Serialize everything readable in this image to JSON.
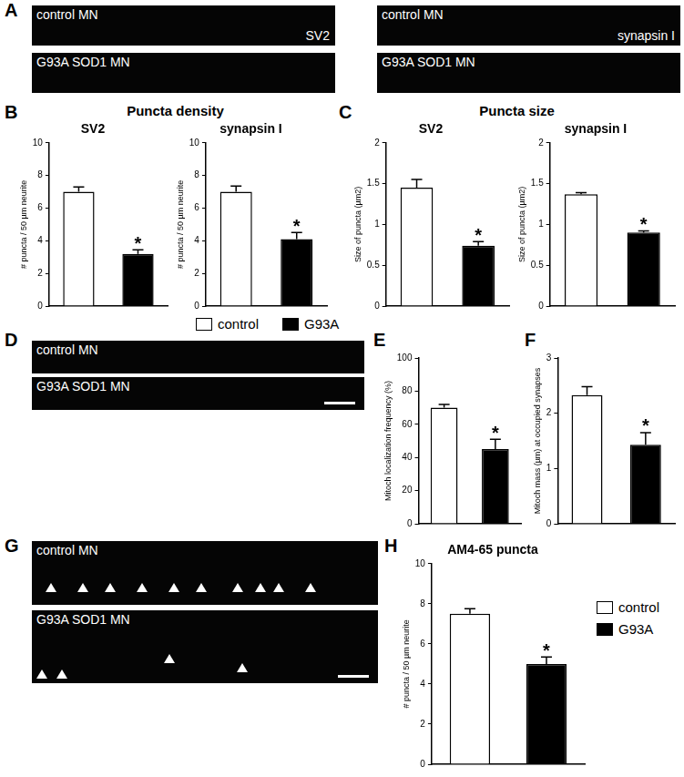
{
  "chart_data": [
    {
      "type": "bar",
      "panel": "B",
      "title": "SV2",
      "ylabel": "# puncta / 50 µm neurite",
      "categories": [
        "control",
        "G93A"
      ],
      "values": [
        7.0,
        3.2
      ],
      "errors": [
        0.3,
        0.25
      ],
      "colors": [
        "#ffffff",
        "#000000"
      ],
      "ylim": [
        0,
        10
      ],
      "yticks": [
        0,
        2,
        4,
        6,
        8,
        10
      ],
      "grid": false,
      "tick_labels": "y",
      "annotations": [
        {
          "text": "*",
          "category": "G93A"
        }
      ]
    },
    {
      "type": "bar",
      "panel": "B",
      "title": "synapsin I",
      "ylabel": "# puncta / 50 µm neurite",
      "categories": [
        "control",
        "G93A"
      ],
      "values": [
        7.0,
        4.1
      ],
      "errors": [
        0.35,
        0.4
      ],
      "colors": [
        "#ffffff",
        "#000000"
      ],
      "ylim": [
        0,
        10
      ],
      "yticks": [
        0,
        2,
        4,
        6,
        8,
        10
      ],
      "grid": false,
      "tick_labels": "y",
      "annotations": [
        {
          "text": "*",
          "category": "G93A"
        }
      ]
    },
    {
      "type": "bar",
      "panel": "C",
      "title": "SV2",
      "ylabel": "Size of puncta (µm2)",
      "categories": [
        "control",
        "G93A"
      ],
      "values": [
        1.45,
        0.74
      ],
      "errors": [
        0.1,
        0.05
      ],
      "colors": [
        "#ffffff",
        "#000000"
      ],
      "ylim": [
        0,
        2
      ],
      "yticks": [
        0,
        0.5,
        1,
        1.5,
        2
      ],
      "grid": false,
      "tick_labels": "y",
      "annotations": [
        {
          "text": "*",
          "category": "G93A"
        }
      ]
    },
    {
      "type": "bar",
      "panel": "C",
      "title": "synapsin I",
      "ylabel": "Size of puncta (µm2)",
      "categories": [
        "control",
        "G93A"
      ],
      "values": [
        1.37,
        0.9
      ],
      "errors": [
        0.02,
        0.02
      ],
      "colors": [
        "#ffffff",
        "#000000"
      ],
      "ylim": [
        0,
        2
      ],
      "yticks": [
        0,
        0.5,
        1,
        1.5,
        2
      ],
      "grid": false,
      "tick_labels": "y",
      "annotations": [
        {
          "text": "*",
          "category": "G93A"
        }
      ]
    },
    {
      "type": "bar",
      "panel": "E",
      "ylabel": "Mitoch localization frequency (%)",
      "categories": [
        "control",
        "G93A"
      ],
      "values": [
        70,
        45
      ],
      "errors": [
        2,
        6
      ],
      "colors": [
        "#ffffff",
        "#000000"
      ],
      "ylim": [
        0,
        100
      ],
      "yticks": [
        0,
        20,
        40,
        60,
        80,
        100
      ],
      "grid": false,
      "tick_labels": "y",
      "annotations": [
        {
          "text": "*",
          "category": "G93A"
        }
      ]
    },
    {
      "type": "bar",
      "panel": "F",
      "ylabel": "Mitoch mass (µm) at occupied synapses",
      "categories": [
        "control",
        "G93A"
      ],
      "values": [
        2.33,
        1.43
      ],
      "errors": [
        0.15,
        0.22
      ],
      "colors": [
        "#ffffff",
        "#000000"
      ],
      "ylim": [
        0,
        3
      ],
      "yticks": [
        0,
        1,
        2,
        3
      ],
      "grid": false,
      "tick_labels": "y",
      "annotations": [
        {
          "text": "*",
          "category": "G93A"
        }
      ]
    },
    {
      "type": "bar",
      "panel": "H",
      "title": "AM4-65 puncta",
      "ylabel": "# puncta / 50 µm neurite",
      "categories": [
        "control",
        "G93A"
      ],
      "values": [
        7.5,
        5.0
      ],
      "errors": [
        0.25,
        0.35
      ],
      "colors": [
        "#ffffff",
        "#000000"
      ],
      "ylim": [
        0,
        10
      ],
      "yticks": [
        0,
        2,
        4,
        6,
        8,
        10
      ],
      "grid": false,
      "tick_labels": "y",
      "annotations": [
        {
          "text": "*",
          "category": "G93A"
        }
      ]
    }
  ],
  "figure": {
    "panel_letters": [
      "A",
      "B",
      "C",
      "D",
      "E",
      "F",
      "G",
      "H"
    ],
    "group_titles": {
      "B": "Puncta density",
      "C": "Puncta size"
    },
    "legend": [
      {
        "name": "control",
        "color": "#ffffff"
      },
      {
        "name": "G93A",
        "color": "#000000"
      }
    ],
    "images": [
      {
        "panel": "A",
        "label": "control MN",
        "marker": "SV2"
      },
      {
        "panel": "A",
        "label": "G93A SOD1 MN"
      },
      {
        "panel": "A",
        "label": "control MN",
        "marker": "synapsin I"
      },
      {
        "panel": "A",
        "label": "G93A SOD1 MN"
      },
      {
        "panel": "D",
        "label": "control MN"
      },
      {
        "panel": "D",
        "label": "G93A SOD1 MN"
      },
      {
        "panel": "G",
        "label": "control MN"
      },
      {
        "panel": "G",
        "label": "G93A SOD1 MN"
      }
    ]
  }
}
